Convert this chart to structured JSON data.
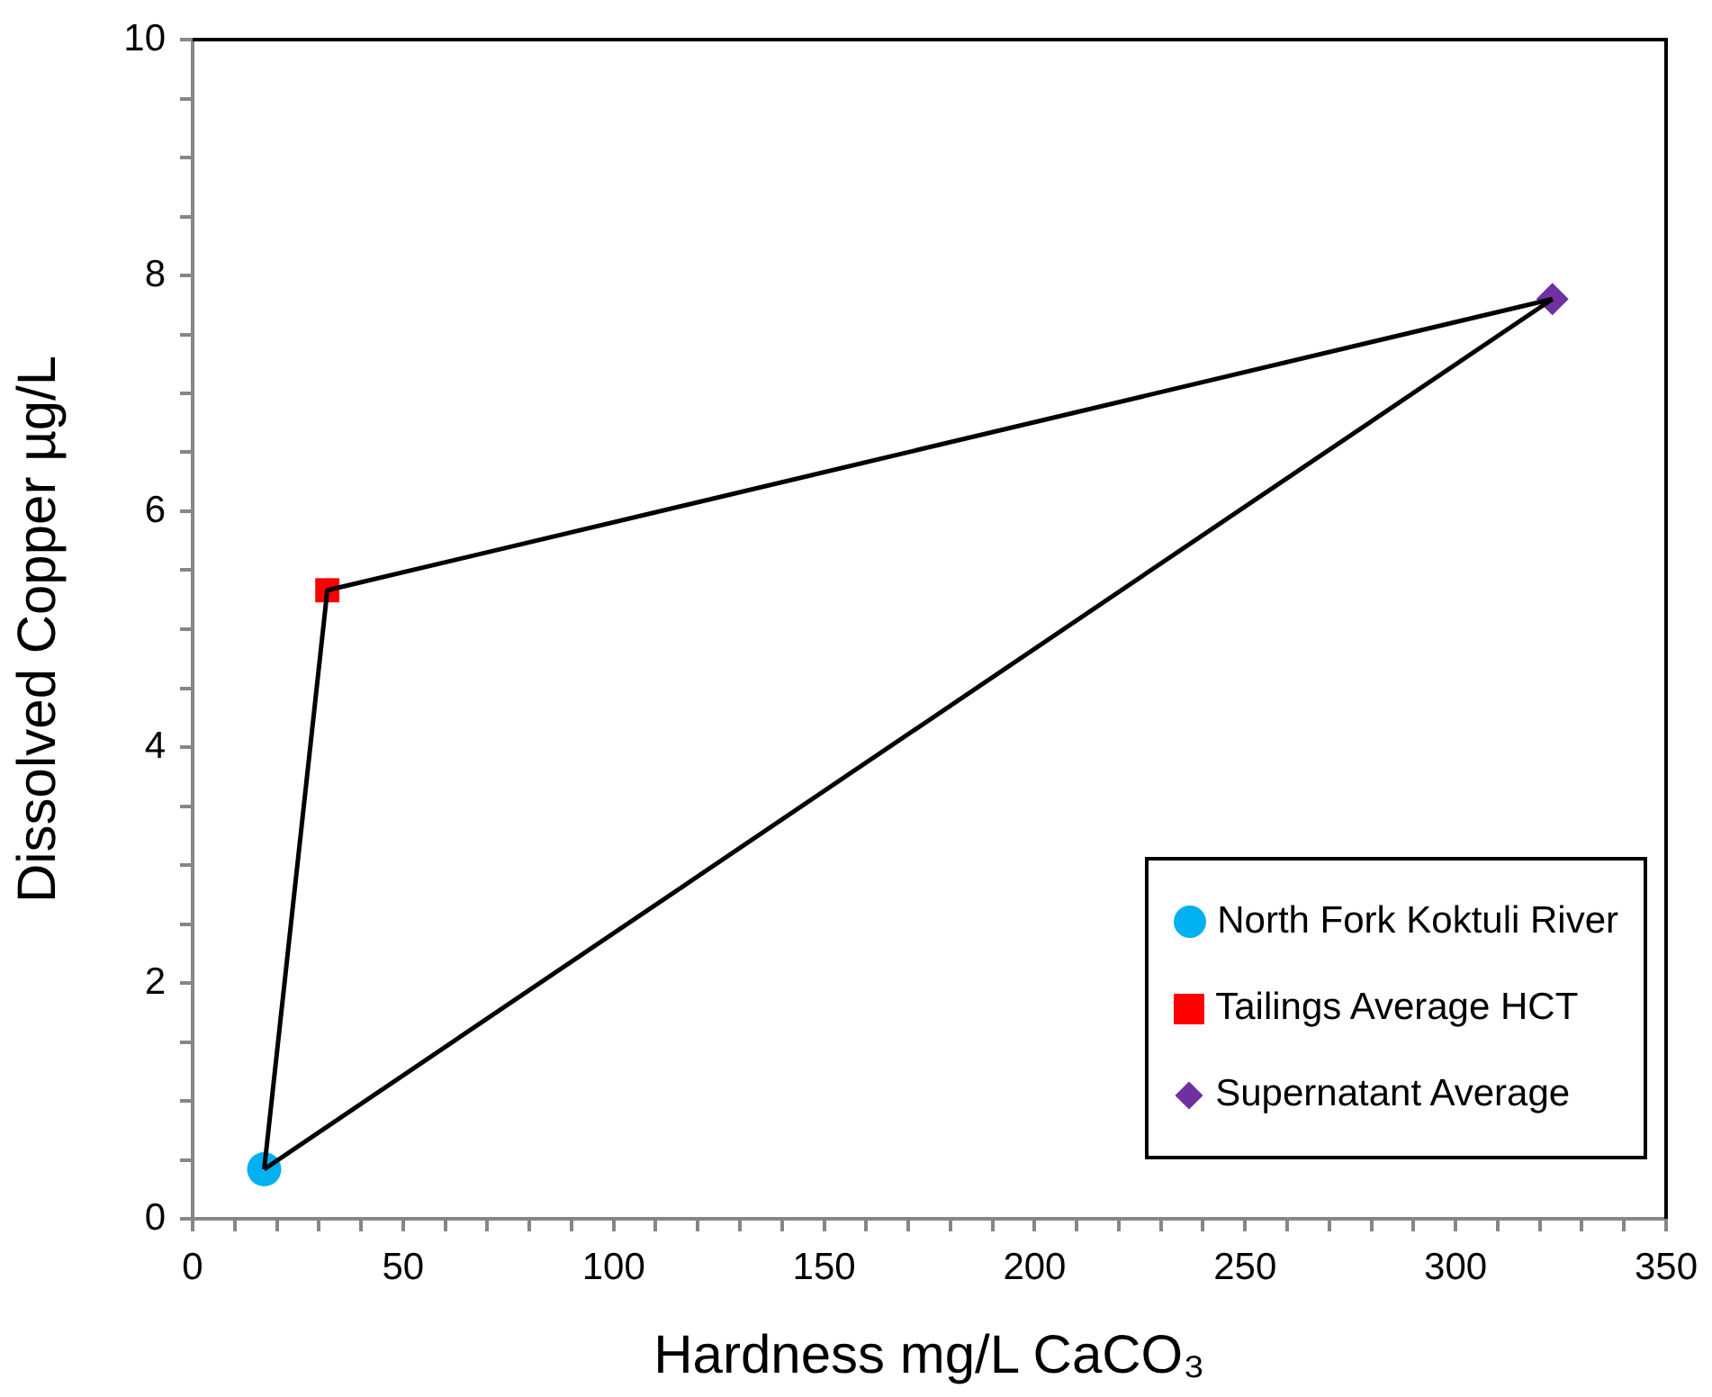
{
  "chart_data": {
    "type": "scatter",
    "xlabel": "Hardness mg/L CaCO₃",
    "ylabel": "Dissolved Copper µg/L",
    "xlim": [
      0,
      350
    ],
    "ylim": [
      0,
      10
    ],
    "xticks": [
      0,
      {
        "value": 10,
        "label": null
      },
      {
        "value": 20,
        "label": null
      },
      {
        "value": 30,
        "label": null
      },
      {
        "value": 40,
        "label": null
      },
      50,
      {
        "value": 60,
        "label": null
      },
      {
        "value": 70,
        "label": null
      },
      {
        "value": 80,
        "label": null
      },
      {
        "value": 90,
        "label": null
      },
      100,
      {
        "value": 110,
        "label": null
      },
      {
        "value": 120,
        "label": null
      },
      {
        "value": 130,
        "label": null
      },
      {
        "value": 140,
        "label": null
      },
      150,
      {
        "value": 160,
        "label": null
      },
      {
        "value": 170,
        "label": null
      },
      {
        "value": 180,
        "label": null
      },
      {
        "value": 190,
        "label": null
      },
      200,
      {
        "value": 210,
        "label": null
      },
      {
        "value": 220,
        "label": null
      },
      {
        "value": 230,
        "label": null
      },
      {
        "value": 240,
        "label": null
      },
      250,
      {
        "value": 260,
        "label": null
      },
      {
        "value": 270,
        "label": null
      },
      {
        "value": 280,
        "label": null
      },
      {
        "value": 290,
        "label": null
      },
      300,
      {
        "value": 310,
        "label": null
      },
      {
        "value": 320,
        "label": null
      },
      {
        "value": 330,
        "label": null
      },
      {
        "value": 340,
        "label": null
      },
      350
    ],
    "yticks": [
      0,
      {
        "value": 0.5,
        "label": null
      },
      {
        "value": 1,
        "label": null
      },
      {
        "value": 1.5,
        "label": null
      },
      2,
      {
        "value": 2.5,
        "label": null
      },
      {
        "value": 3,
        "label": null
      },
      {
        "value": 3.5,
        "label": null
      },
      4,
      {
        "value": 4.5,
        "label": null
      },
      {
        "value": 5,
        "label": null
      },
      {
        "value": 5.5,
        "label": null
      },
      6,
      {
        "value": 6.5,
        "label": null
      },
      {
        "value": 7,
        "label": null
      },
      {
        "value": 7.5,
        "label": null
      },
      8,
      {
        "value": 8.5,
        "label": null
      },
      {
        "value": 9,
        "label": null
      },
      {
        "value": 9.5,
        "label": null
      },
      10
    ],
    "grid": false,
    "legend": "bottom right",
    "series": [
      {
        "type": "line",
        "color": "#000000",
        "marker": "none",
        "line_style": "solid",
        "x": [
          17,
          32,
          323
        ],
        "values": [
          0.42,
          5.33,
          7.8
        ]
      },
      {
        "type": "line",
        "color": "#000000",
        "marker": "none",
        "line_style": "solid",
        "x": [
          17,
          323
        ],
        "values": [
          0.42,
          7.8
        ]
      },
      {
        "name": "North Fork Koktuli River",
        "color": "#00b0f0",
        "marker": "circle",
        "x": [
          17
        ],
        "values": [
          0.42
        ]
      },
      {
        "name": "Tailings Average HCT",
        "color": "#ff0000",
        "marker": "square",
        "x": [
          32
        ],
        "values": [
          5.33
        ]
      },
      {
        "name": "Supernatant Average",
        "color": "#7030a0",
        "marker": "diamond",
        "x": [
          323
        ],
        "values": [
          7.8
        ]
      }
    ]
  }
}
